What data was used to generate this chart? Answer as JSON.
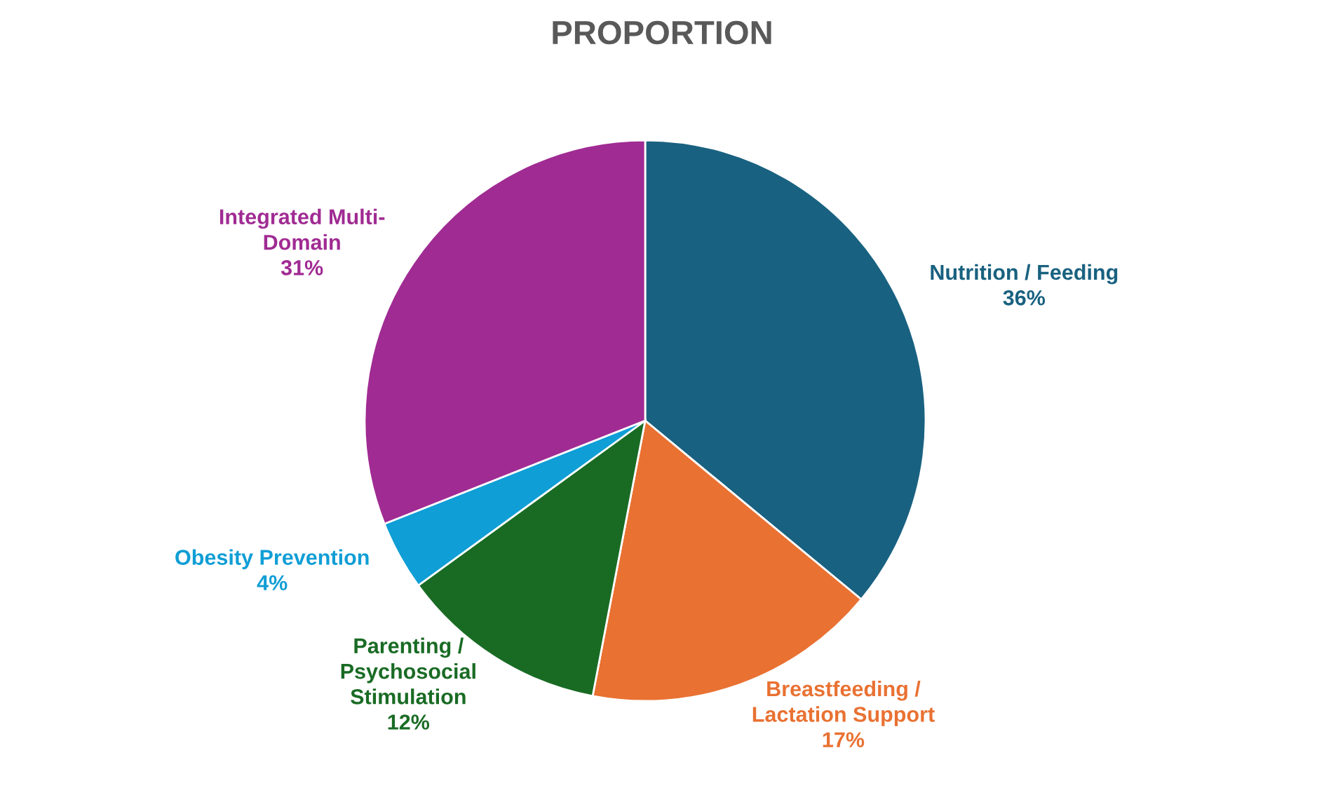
{
  "chart_data": {
    "type": "pie",
    "title": "PROPORTION",
    "categories": [
      "Nutrition / Feeding",
      "Breastfeeding /\nLactation Support",
      "Parenting /\nPsychosocial\nStimulation",
      "Obesity Prevention",
      "Integrated Multi-\nDomain"
    ],
    "values": [
      36,
      17,
      12,
      4,
      31
    ],
    "colors": [
      "#196180",
      "#e97132",
      "#196b24",
      "#0f9ed5",
      "#a02b93"
    ],
    "value_labels": [
      "36%",
      "17%",
      "12%",
      "4%",
      "31%"
    ],
    "legend": false
  }
}
